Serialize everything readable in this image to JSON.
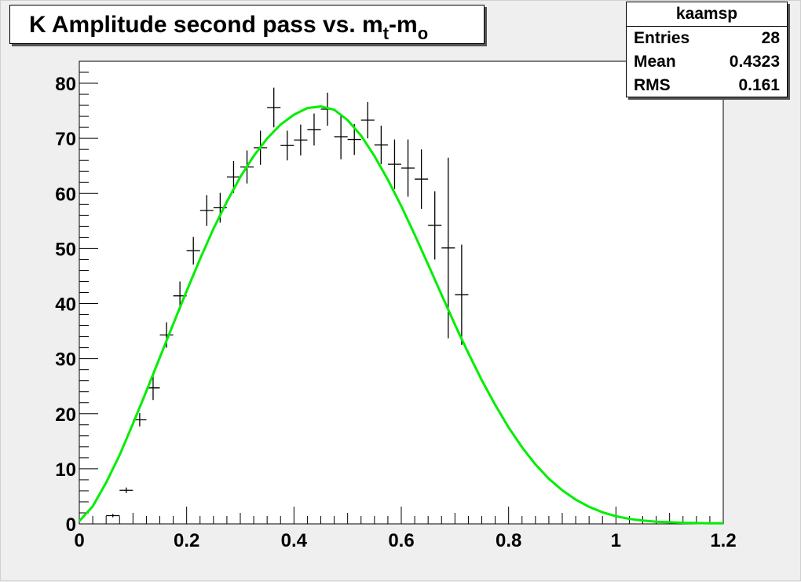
{
  "title": {
    "main": "K Amplitude second pass vs. m",
    "sub1": "t",
    "mid": "-m",
    "sub2": "o"
  },
  "stats": {
    "name": "kaamsp",
    "rows": [
      {
        "label": "Entries",
        "value": "28"
      },
      {
        "label": "Mean",
        "value": "0.4323"
      },
      {
        "label": "RMS",
        "value": "0.161"
      }
    ]
  },
  "colors": {
    "fit": "#00ee00",
    "points": "#000000",
    "frame": "#efefef",
    "plot_bg": "#ffffff"
  },
  "chart_data": {
    "type": "scatter",
    "xlim": [
      0,
      1.2
    ],
    "ylim": [
      0,
      84
    ],
    "x_ticks": [
      0,
      0.2,
      0.4,
      0.6,
      0.8,
      1,
      1.2
    ],
    "x_tick_labels": [
      "0",
      "0.2",
      "0.4",
      "0.6",
      "0.8",
      "1",
      "1.2"
    ],
    "y_ticks": [
      0,
      10,
      20,
      30,
      40,
      50,
      60,
      70,
      80
    ],
    "y_tick_labels": [
      "0",
      "10",
      "20",
      "30",
      "40",
      "50",
      "60",
      "70",
      "80"
    ],
    "grid": false,
    "bin_half_width": 0.0125,
    "points": [
      {
        "x": 0.0625,
        "y": 1.5,
        "err": 0.3
      },
      {
        "x": 0.0875,
        "y": 6.1,
        "err": 0.5
      },
      {
        "x": 0.1125,
        "y": 18.9,
        "err": 1.2
      },
      {
        "x": 0.1375,
        "y": 24.7,
        "err": 2.2
      },
      {
        "x": 0.1625,
        "y": 34.3,
        "err": 2.3
      },
      {
        "x": 0.1875,
        "y": 41.4,
        "err": 2.6
      },
      {
        "x": 0.2125,
        "y": 49.6,
        "err": 2.5
      },
      {
        "x": 0.2375,
        "y": 56.9,
        "err": 2.8
      },
      {
        "x": 0.2625,
        "y": 57.4,
        "err": 2.7
      },
      {
        "x": 0.2875,
        "y": 63.0,
        "err": 2.9
      },
      {
        "x": 0.3125,
        "y": 64.8,
        "err": 3.0
      },
      {
        "x": 0.3375,
        "y": 68.3,
        "err": 3.1
      },
      {
        "x": 0.3625,
        "y": 75.6,
        "err": 3.6
      },
      {
        "x": 0.3875,
        "y": 68.7,
        "err": 2.7
      },
      {
        "x": 0.4125,
        "y": 69.7,
        "err": 2.8
      },
      {
        "x": 0.4375,
        "y": 71.6,
        "err": 2.9
      },
      {
        "x": 0.4625,
        "y": 75.3,
        "err": 3.0
      },
      {
        "x": 0.4875,
        "y": 70.3,
        "err": 4.1
      },
      {
        "x": 0.5125,
        "y": 69.8,
        "err": 2.8
      },
      {
        "x": 0.5375,
        "y": 73.3,
        "err": 3.3
      },
      {
        "x": 0.5625,
        "y": 68.8,
        "err": 3.5
      },
      {
        "x": 0.5875,
        "y": 65.3,
        "err": 4.5
      },
      {
        "x": 0.6125,
        "y": 64.6,
        "err": 5.2
      },
      {
        "x": 0.6375,
        "y": 62.6,
        "err": 5.4
      },
      {
        "x": 0.6625,
        "y": 54.2,
        "err": 6.2
      },
      {
        "x": 0.6875,
        "y": 50.1,
        "err": 16.4
      },
      {
        "x": 0.7125,
        "y": 41.6,
        "err": 9.1
      }
    ],
    "fit": {
      "name": "",
      "x": [
        0,
        0.025,
        0.05,
        0.075,
        0.1,
        0.125,
        0.15,
        0.175,
        0.2,
        0.225,
        0.25,
        0.275,
        0.3,
        0.325,
        0.35,
        0.375,
        0.4,
        0.425,
        0.45,
        0.475,
        0.5,
        0.525,
        0.55,
        0.575,
        0.6,
        0.625,
        0.65,
        0.675,
        0.7,
        0.725,
        0.75,
        0.775,
        0.8,
        0.825,
        0.85,
        0.875,
        0.9,
        0.925,
        0.95,
        0.975,
        1.0,
        1.025,
        1.05,
        1.075,
        1.1,
        1.125,
        1.15,
        1.175,
        1.2
      ],
      "y": [
        0.5,
        3.2,
        7.5,
        12.5,
        18.2,
        24.1,
        30.2,
        36.3,
        42.3,
        48.1,
        53.6,
        58.5,
        63.0,
        66.8,
        70.0,
        72.5,
        74.3,
        75.5,
        75.8,
        75.2,
        73.3,
        70.5,
        66.8,
        62.5,
        57.7,
        52.5,
        47.1,
        41.6,
        36.2,
        31.0,
        26.1,
        21.6,
        17.5,
        13.9,
        10.8,
        8.2,
        6.1,
        4.4,
        3.1,
        2.1,
        1.4,
        0.9,
        0.6,
        0.4,
        0.3,
        0.2,
        0.15,
        0.1,
        0.1
      ]
    }
  }
}
